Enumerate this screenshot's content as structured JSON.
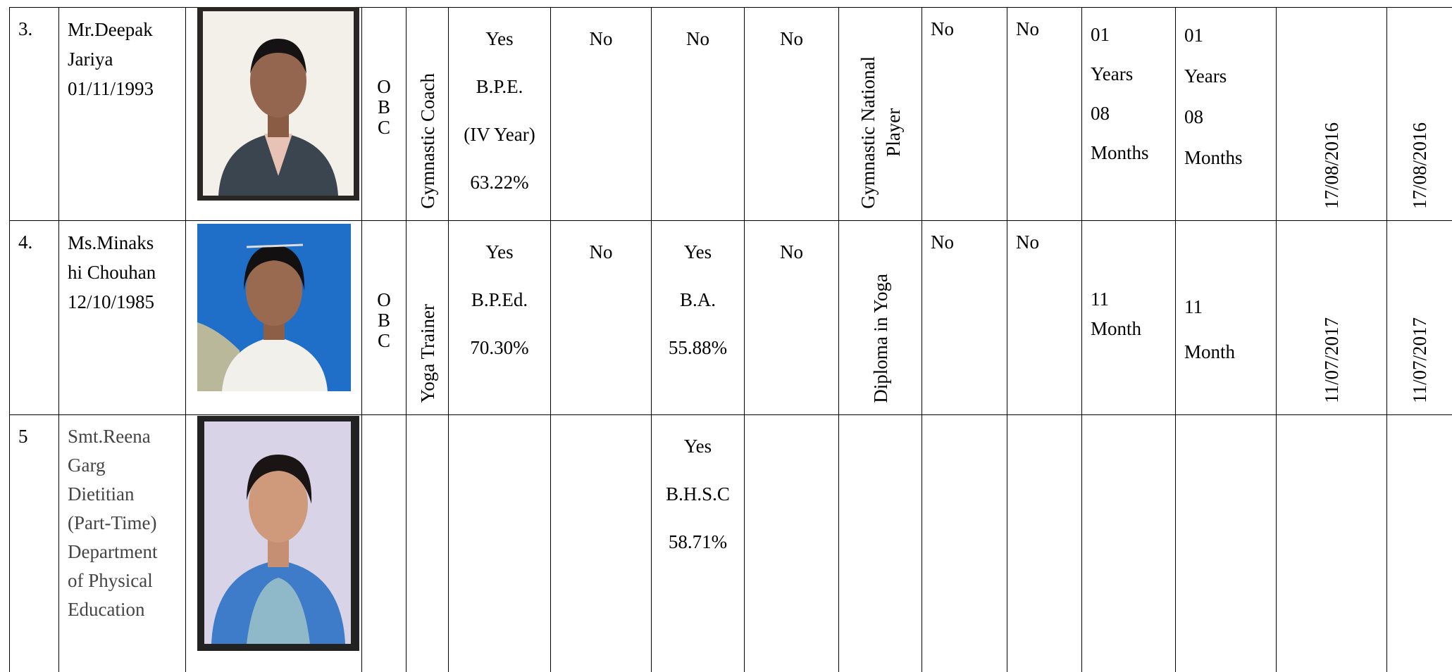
{
  "table": {
    "rows": [
      {
        "cells": [
          [
            "3."
          ],
          [
            "Mr.Deepak",
            "Jariya",
            "01/11/1993"
          ],
          [
            "O",
            "B",
            "C"
          ],
          [
            "Gymnastic Coach"
          ],
          [
            "Yes",
            "B.P.E.",
            "(IV Year)",
            "63.22%"
          ],
          [
            "No"
          ],
          [
            "No"
          ],
          [
            "No"
          ],
          [
            "Gymnastic National",
            "Player"
          ],
          [
            "No"
          ],
          [
            "No"
          ],
          [
            "01",
            "Years",
            "08",
            "Months"
          ],
          [
            "01",
            "Years",
            "08",
            "Months"
          ],
          [
            "17/08/2016"
          ],
          [
            "17/08/2016"
          ]
        ]
      },
      {
        "cells": [
          [
            "4."
          ],
          [
            "Ms.Minaks",
            "hi Chouhan",
            "12/10/1985"
          ],
          [
            "O",
            "B",
            "C"
          ],
          [
            "Yoga  Trainer"
          ],
          [
            "Yes",
            "B.P.Ed.",
            "70.30%"
          ],
          [
            "No"
          ],
          [
            "Yes",
            "B.A.",
            "55.88%"
          ],
          [
            "No"
          ],
          [
            "Diploma in Yoga"
          ],
          [
            "No"
          ],
          [
            "No"
          ],
          [
            "11",
            "Month"
          ],
          [
            "11",
            "Month"
          ],
          [
            "11/07/2017"
          ],
          [
            "11/07/2017"
          ]
        ]
      },
      {
        "cells": [
          [
            "5"
          ],
          [
            "Smt.Reena",
            "Garg",
            "Dietitian",
            "(Part-Time)",
            "Department",
            "of Physical",
            "Education"
          ],
          [],
          [],
          [],
          [],
          [
            "Yes",
            "B.H.S.C",
            "58.71%"
          ],
          [],
          [],
          [],
          [],
          [],
          [],
          [],
          []
        ]
      }
    ]
  }
}
